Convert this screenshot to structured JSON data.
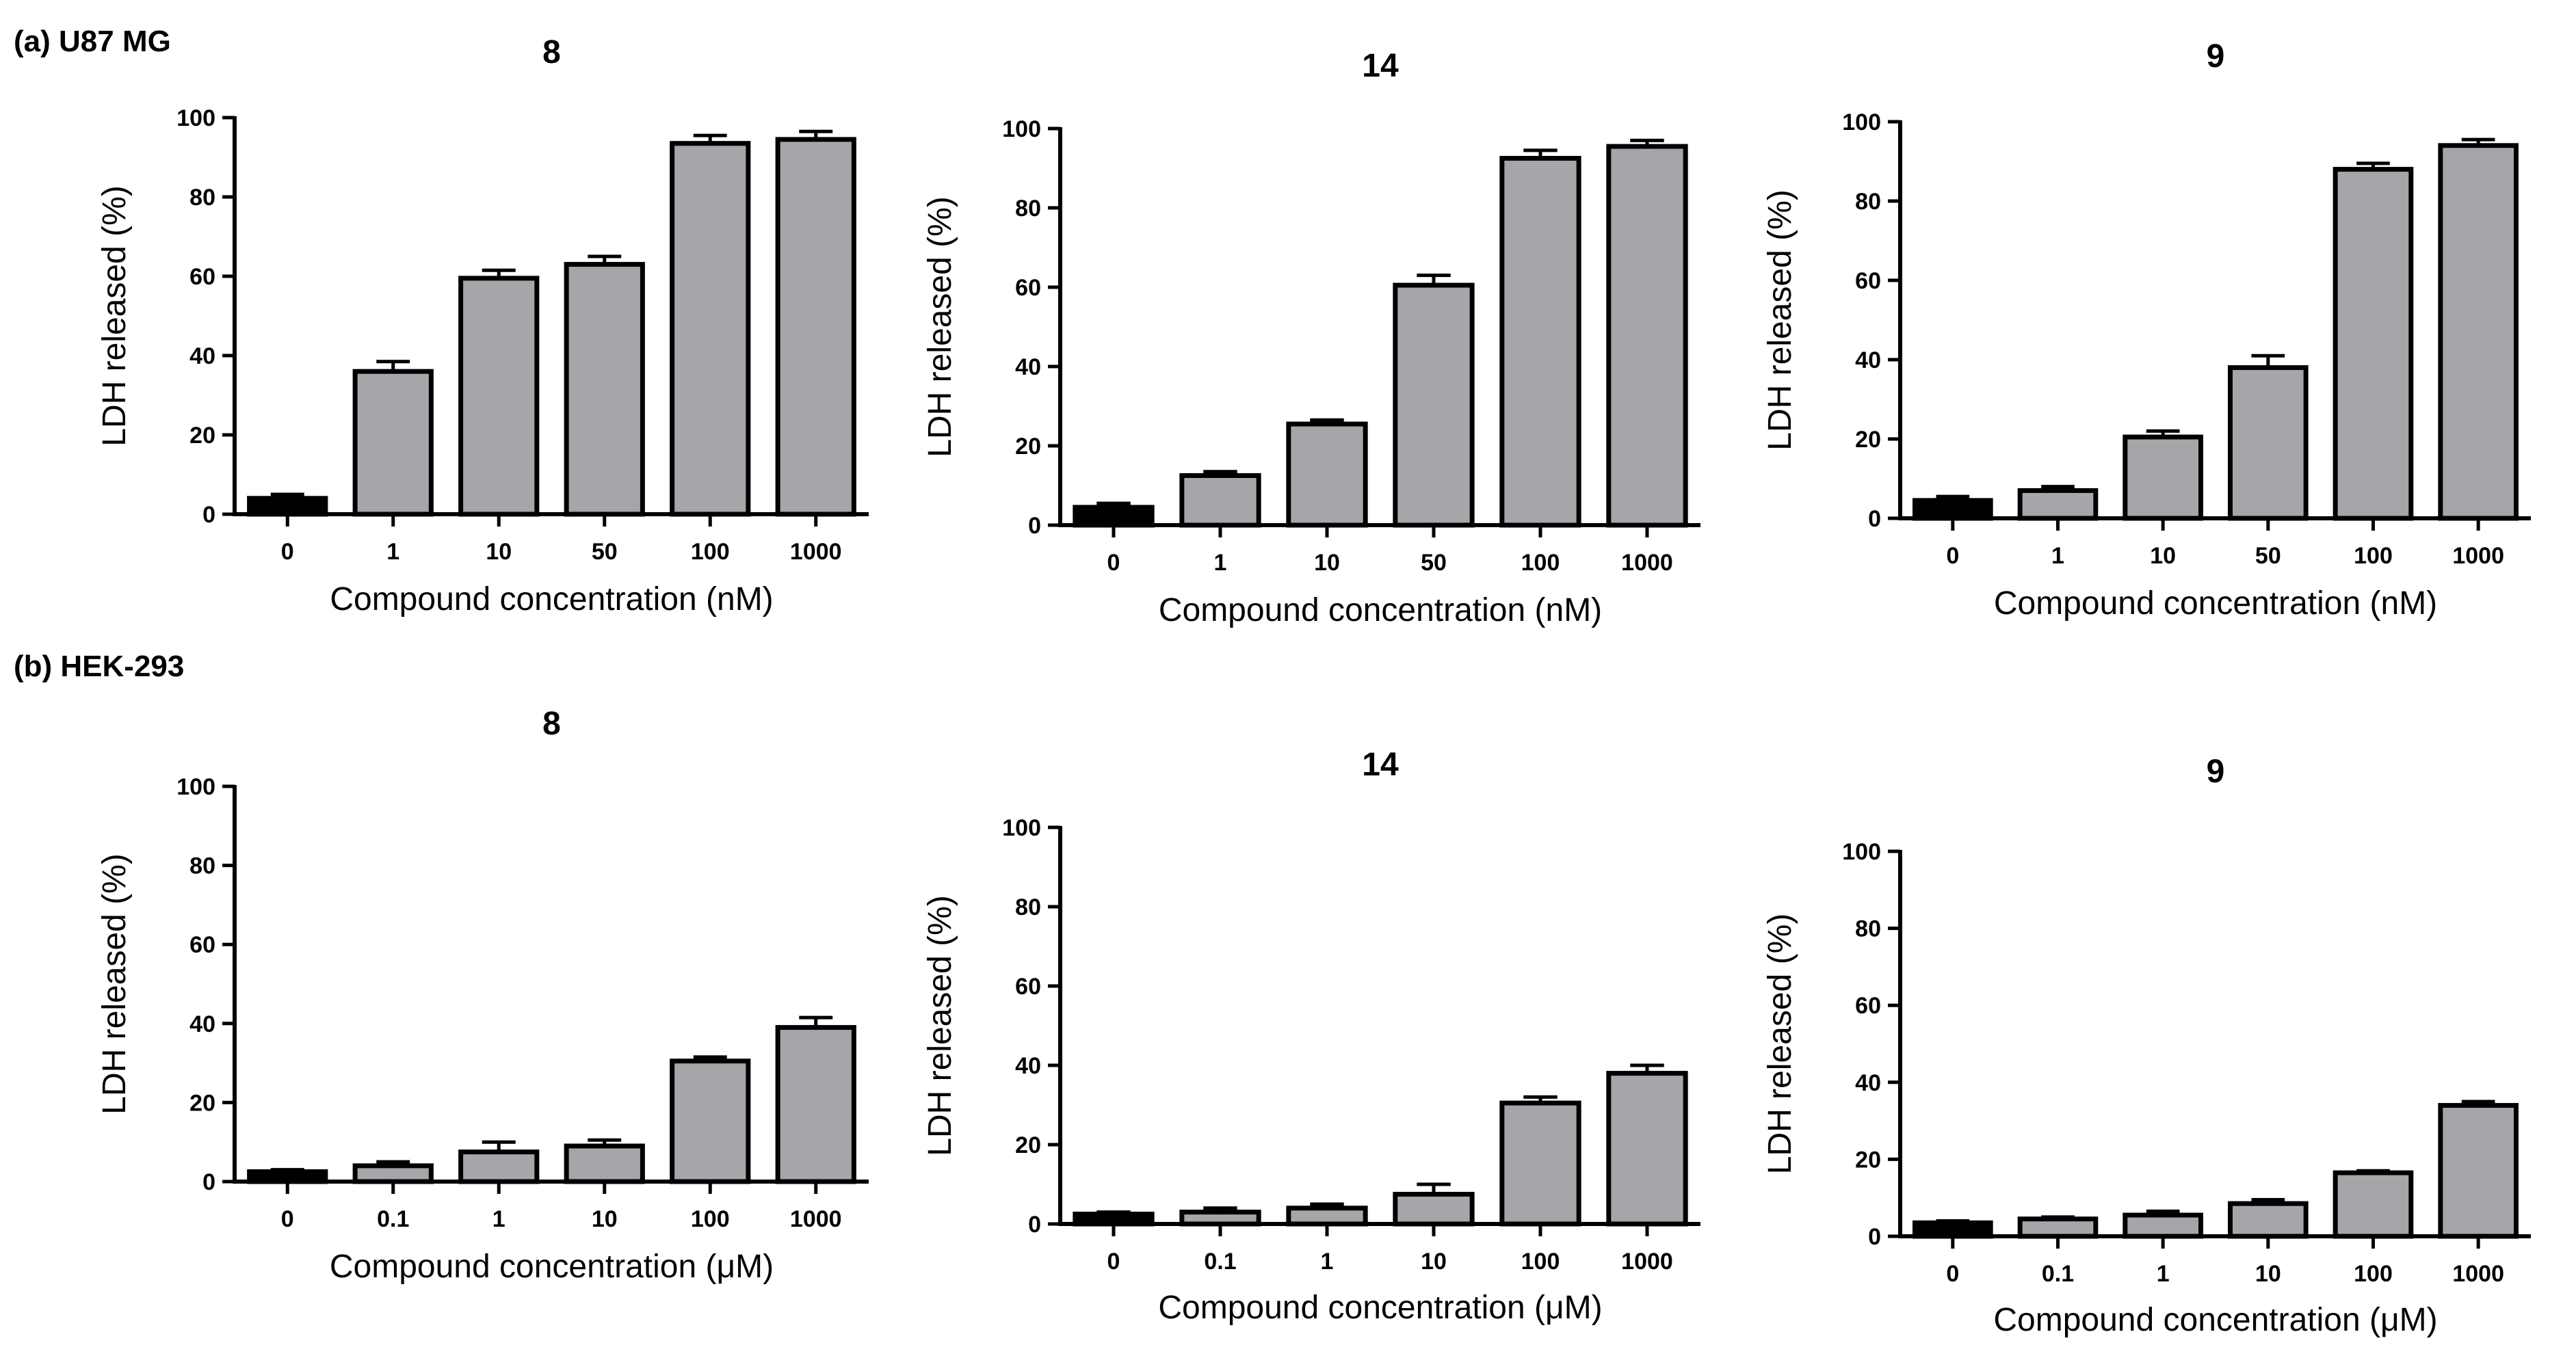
{
  "figure": {
    "panel_a": "(a) U87 MG",
    "panel_b": "(b) HEK-293"
  },
  "colors": {
    "control_bar": "#000000",
    "bar_fill": "#a6a6aa",
    "stroke": "#000000"
  },
  "chart_data": [
    {
      "type": "bar",
      "panel": "a",
      "title": "8",
      "categories": [
        "0",
        "1",
        "10",
        "50",
        "100",
        "1000"
      ],
      "values": [
        4,
        36,
        59.5,
        63,
        93.5,
        94.5
      ],
      "errors": [
        1,
        2.5,
        2,
        2,
        2,
        2
      ],
      "ylabel": "LDH released (%)",
      "xlabel": "Compound concentration (nM)",
      "ylim": [
        0,
        100
      ],
      "yticks": [
        "0",
        "20",
        "40",
        "60",
        "80",
        "100"
      ]
    },
    {
      "type": "bar",
      "panel": "a",
      "title": "14",
      "categories": [
        "0",
        "1",
        "10",
        "50",
        "100",
        "1000"
      ],
      "values": [
        4.5,
        12.5,
        25.5,
        60.5,
        92.5,
        95.5
      ],
      "errors": [
        1,
        1,
        1,
        2.5,
        2,
        1.5
      ],
      "ylabel": "LDH released (%)",
      "xlabel": "Compound concentration (nM)",
      "ylim": [
        0,
        100
      ],
      "yticks": [
        "0",
        "20",
        "40",
        "60",
        "80",
        "100"
      ]
    },
    {
      "type": "bar",
      "panel": "a",
      "title": "9",
      "categories": [
        "0",
        "1",
        "10",
        "50",
        "100",
        "1000"
      ],
      "values": [
        4.5,
        7,
        20.5,
        38,
        88,
        94
      ],
      "errors": [
        1,
        1,
        1.5,
        3,
        1.5,
        1.5
      ],
      "ylabel": "LDH released (%)",
      "xlabel": "Compound concentration (nM)",
      "ylim": [
        0,
        100
      ],
      "yticks": [
        "0",
        "20",
        "40",
        "60",
        "80",
        "100"
      ]
    },
    {
      "type": "bar",
      "panel": "b",
      "title": "8",
      "categories": [
        "0",
        "0.1",
        "1",
        "10",
        "100",
        "1000"
      ],
      "values": [
        2.5,
        4,
        7.5,
        9,
        30.5,
        39
      ],
      "errors": [
        0.5,
        1,
        2.5,
        1.5,
        1,
        2.5
      ],
      "ylabel": "LDH released (%)",
      "xlabel": "Compound concentration (μM)",
      "ylim": [
        0,
        100
      ],
      "yticks": [
        "0",
        "20",
        "40",
        "60",
        "80",
        "100"
      ]
    },
    {
      "type": "bar",
      "panel": "b",
      "title": "14",
      "categories": [
        "0",
        "0.1",
        "1",
        "10",
        "100",
        "1000"
      ],
      "values": [
        2.5,
        3,
        4,
        7.5,
        30.5,
        38
      ],
      "errors": [
        0.5,
        1,
        1,
        2.5,
        1.5,
        2
      ],
      "ylabel": "LDH released (%)",
      "xlabel": "Compound concentration (μM)",
      "ylim": [
        0,
        100
      ],
      "yticks": [
        "0",
        "20",
        "40",
        "60",
        "80",
        "100"
      ]
    },
    {
      "type": "bar",
      "panel": "b",
      "title": "9",
      "categories": [
        "0",
        "0.1",
        "1",
        "10",
        "100",
        "1000"
      ],
      "values": [
        3.5,
        4.5,
        5.5,
        8.5,
        16.5,
        34
      ],
      "errors": [
        0.5,
        0.5,
        1,
        1,
        0.5,
        1
      ],
      "ylabel": "LDH released (%)",
      "xlabel": "Compound concentration (μM)",
      "ylim": [
        0,
        100
      ],
      "yticks": [
        "0",
        "20",
        "40",
        "60",
        "80",
        "100"
      ]
    }
  ]
}
